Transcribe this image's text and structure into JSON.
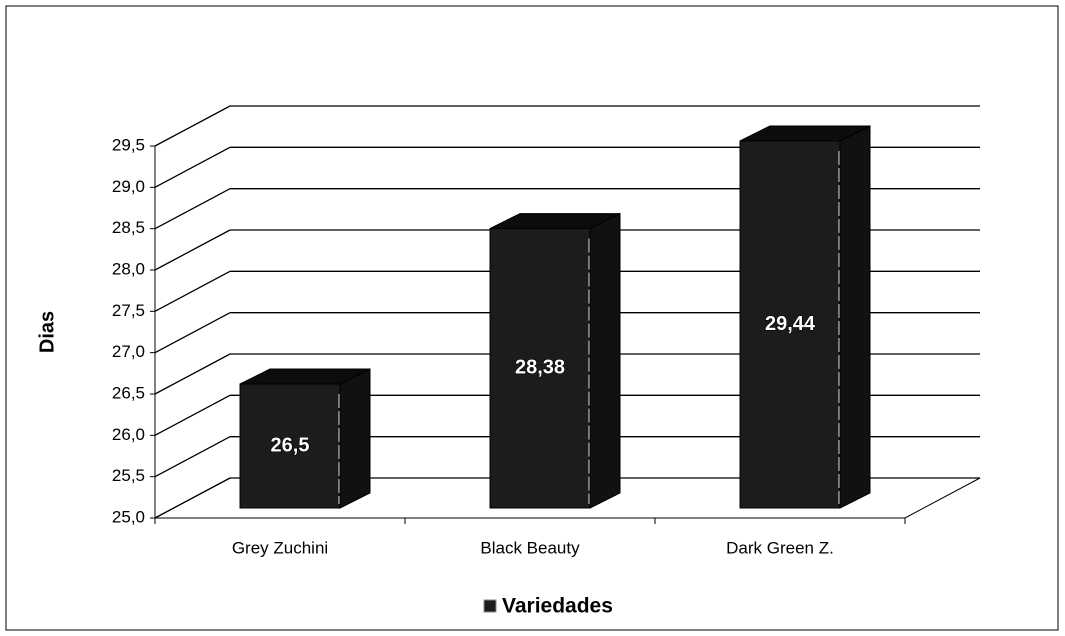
{
  "chart_data": {
    "type": "bar3d",
    "y_label": "Dias",
    "categories": [
      "Grey Zuchini",
      "Black Beauty",
      "Dark Green Z."
    ],
    "series": [
      {
        "name": "Variedades",
        "color": "#1c1c1c",
        "values": [
          26.5,
          28.38,
          29.44
        ],
        "value_labels": [
          "26,5",
          "28,38",
          "29,44"
        ]
      }
    ],
    "ylim": [
      25,
      29.5
    ],
    "yticks": [
      {
        "value": 25,
        "label": "25,0"
      },
      {
        "value": 25.5,
        "label": "25,5"
      },
      {
        "value": 26,
        "label": "26,0"
      },
      {
        "value": 26.5,
        "label": "26,5"
      },
      {
        "value": 27,
        "label": "27,0"
      },
      {
        "value": 27.5,
        "label": "27,5"
      },
      {
        "value": 28,
        "label": "28,0"
      },
      {
        "value": 28.5,
        "label": "28,5"
      },
      {
        "value": 29,
        "label": "29,0"
      },
      {
        "value": 29.5,
        "label": "29,5"
      }
    ],
    "grid": true,
    "legend": "bottom"
  }
}
